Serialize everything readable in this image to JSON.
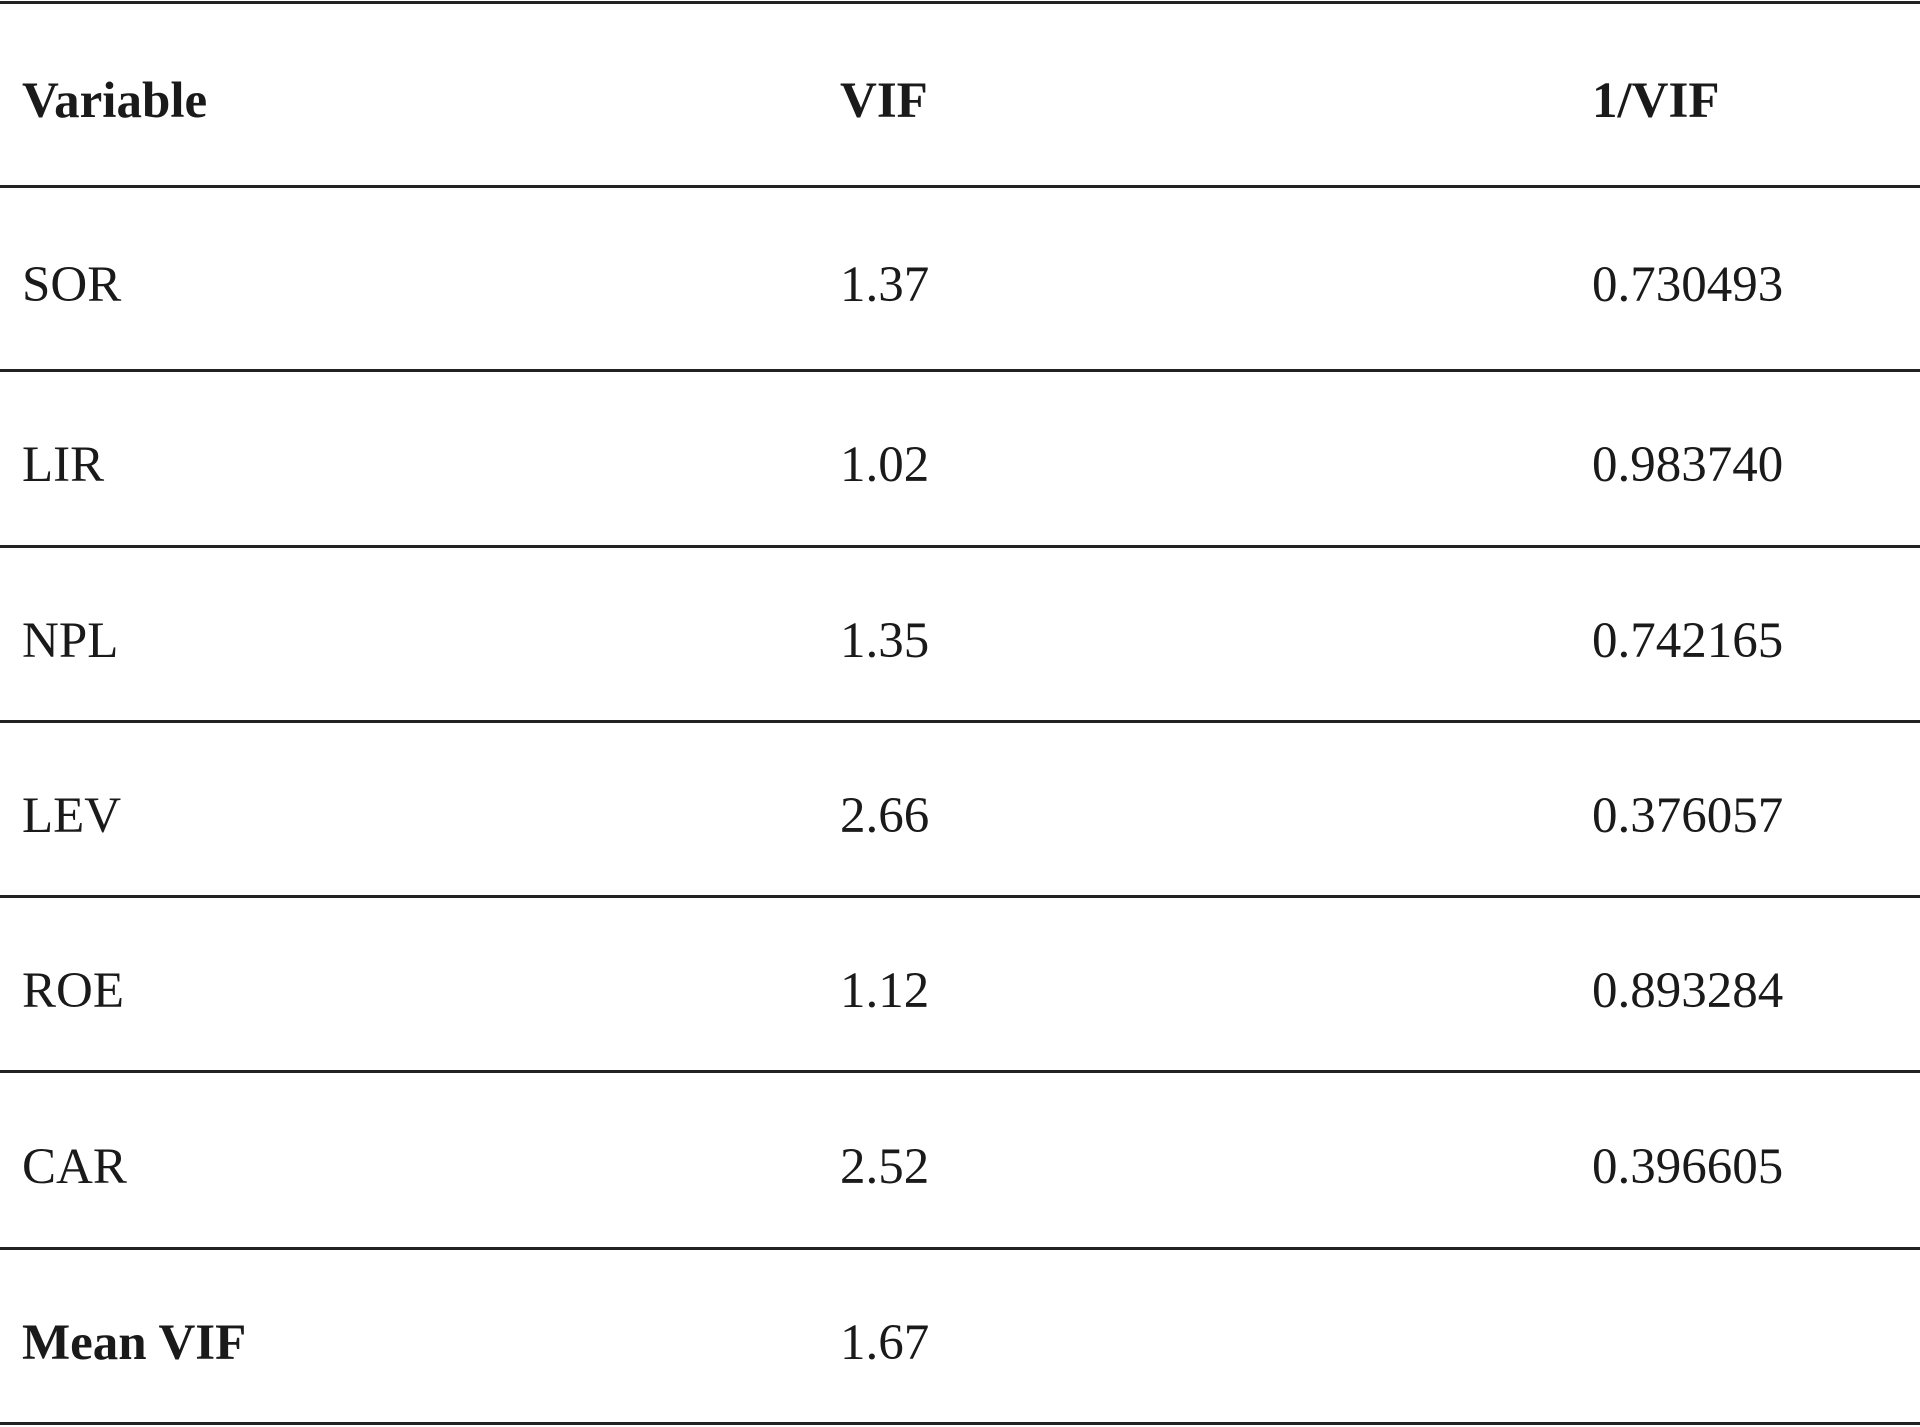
{
  "table": {
    "header": [
      "Variable",
      "VIF",
      "1/VIF"
    ],
    "rows": [
      [
        "SOR",
        "1.37",
        "0.730493"
      ],
      [
        "LIR",
        "1.02",
        "0.983740"
      ],
      [
        "NPL",
        "1.35",
        "0.742165"
      ],
      [
        "LEV",
        "2.66",
        "0.376057"
      ],
      [
        "ROE",
        "1.12",
        "0.893284"
      ],
      [
        "CAR",
        "2.52",
        "0.396605"
      ]
    ],
    "footer": [
      "Mean VIF",
      "1.67"
    ]
  }
}
